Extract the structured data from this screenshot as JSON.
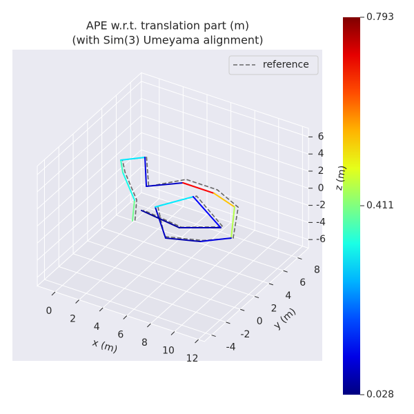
{
  "chart_data": {
    "type": "trajectory3d",
    "title": "APE w.r.t. translation part (m)",
    "subtitle": "(with Sim(3) Umeyama alignment)",
    "xlabel": "x (m)",
    "ylabel": "y (m)",
    "zlabel": "z (m)",
    "xlim": [
      -1.5,
      12.5
    ],
    "ylim": [
      -5,
      9.5
    ],
    "zlim": [
      -7,
      7
    ],
    "xticks": [
      0,
      2,
      4,
      6,
      8,
      10,
      12
    ],
    "yticks": [
      -4,
      -2,
      0,
      2,
      4,
      6,
      8
    ],
    "zticks": [
      -6,
      -4,
      -2,
      0,
      2,
      4,
      6
    ],
    "grid": true,
    "legend": "upper right",
    "series": [
      {
        "name": "reference",
        "color": "#666666",
        "style": "dashed",
        "x": [
          4.1,
          2.8,
          0.2,
          -0.8,
          0.5,
          2.6,
          4.6,
          7.2,
          9.5,
          11.3,
          9.6,
          7.0,
          4.5,
          6.2,
          9.9,
          7.4,
          3.9
        ],
        "y": [
          -0.7,
          1.7,
          4.4,
          5.7,
          6.9,
          3.7,
          5.6,
          5.6,
          4.7,
          1.0,
          -0.4,
          -1.4,
          1.8,
          4.4,
          1.9,
          0.3,
          0.8
        ],
        "z": [
          0,
          0,
          0,
          0,
          0,
          0,
          0.3,
          0.3,
          0,
          0,
          0,
          0,
          0,
          0,
          0,
          0,
          0
        ]
      },
      {
        "colormap": "jet",
        "x": [
          3.96,
          2.68,
          0.08,
          -0.89,
          0.4,
          2.46,
          4.46,
          7.06,
          9.26,
          11.17,
          9.51,
          7.16,
          4.41,
          6.03,
          9.83,
          7.3,
          3.81
        ],
        "y": [
          -0.82,
          1.6,
          4.29,
          5.62,
          6.84,
          3.61,
          5.38,
          5.37,
          4.59,
          0.94,
          -0.62,
          -1.53,
          1.6,
          4.2,
          1.72,
          0.16,
          0.69
        ],
        "z": [
          0,
          0,
          0,
          0,
          0,
          0,
          0,
          0,
          0,
          0,
          0,
          0,
          0,
          0,
          0,
          0,
          0
        ],
        "values": [
          0.4,
          0.33,
          0.36,
          0.3,
          0.1,
          0.08,
          0.7,
          0.55,
          0.45,
          0.1,
          0.06,
          0.08,
          0.3,
          0.12,
          0.07,
          0.05,
          0.35
        ]
      }
    ],
    "colorbar": {
      "clim": [
        0.028,
        0.793
      ],
      "ticks": [
        0.028,
        0.411,
        0.793
      ]
    }
  }
}
